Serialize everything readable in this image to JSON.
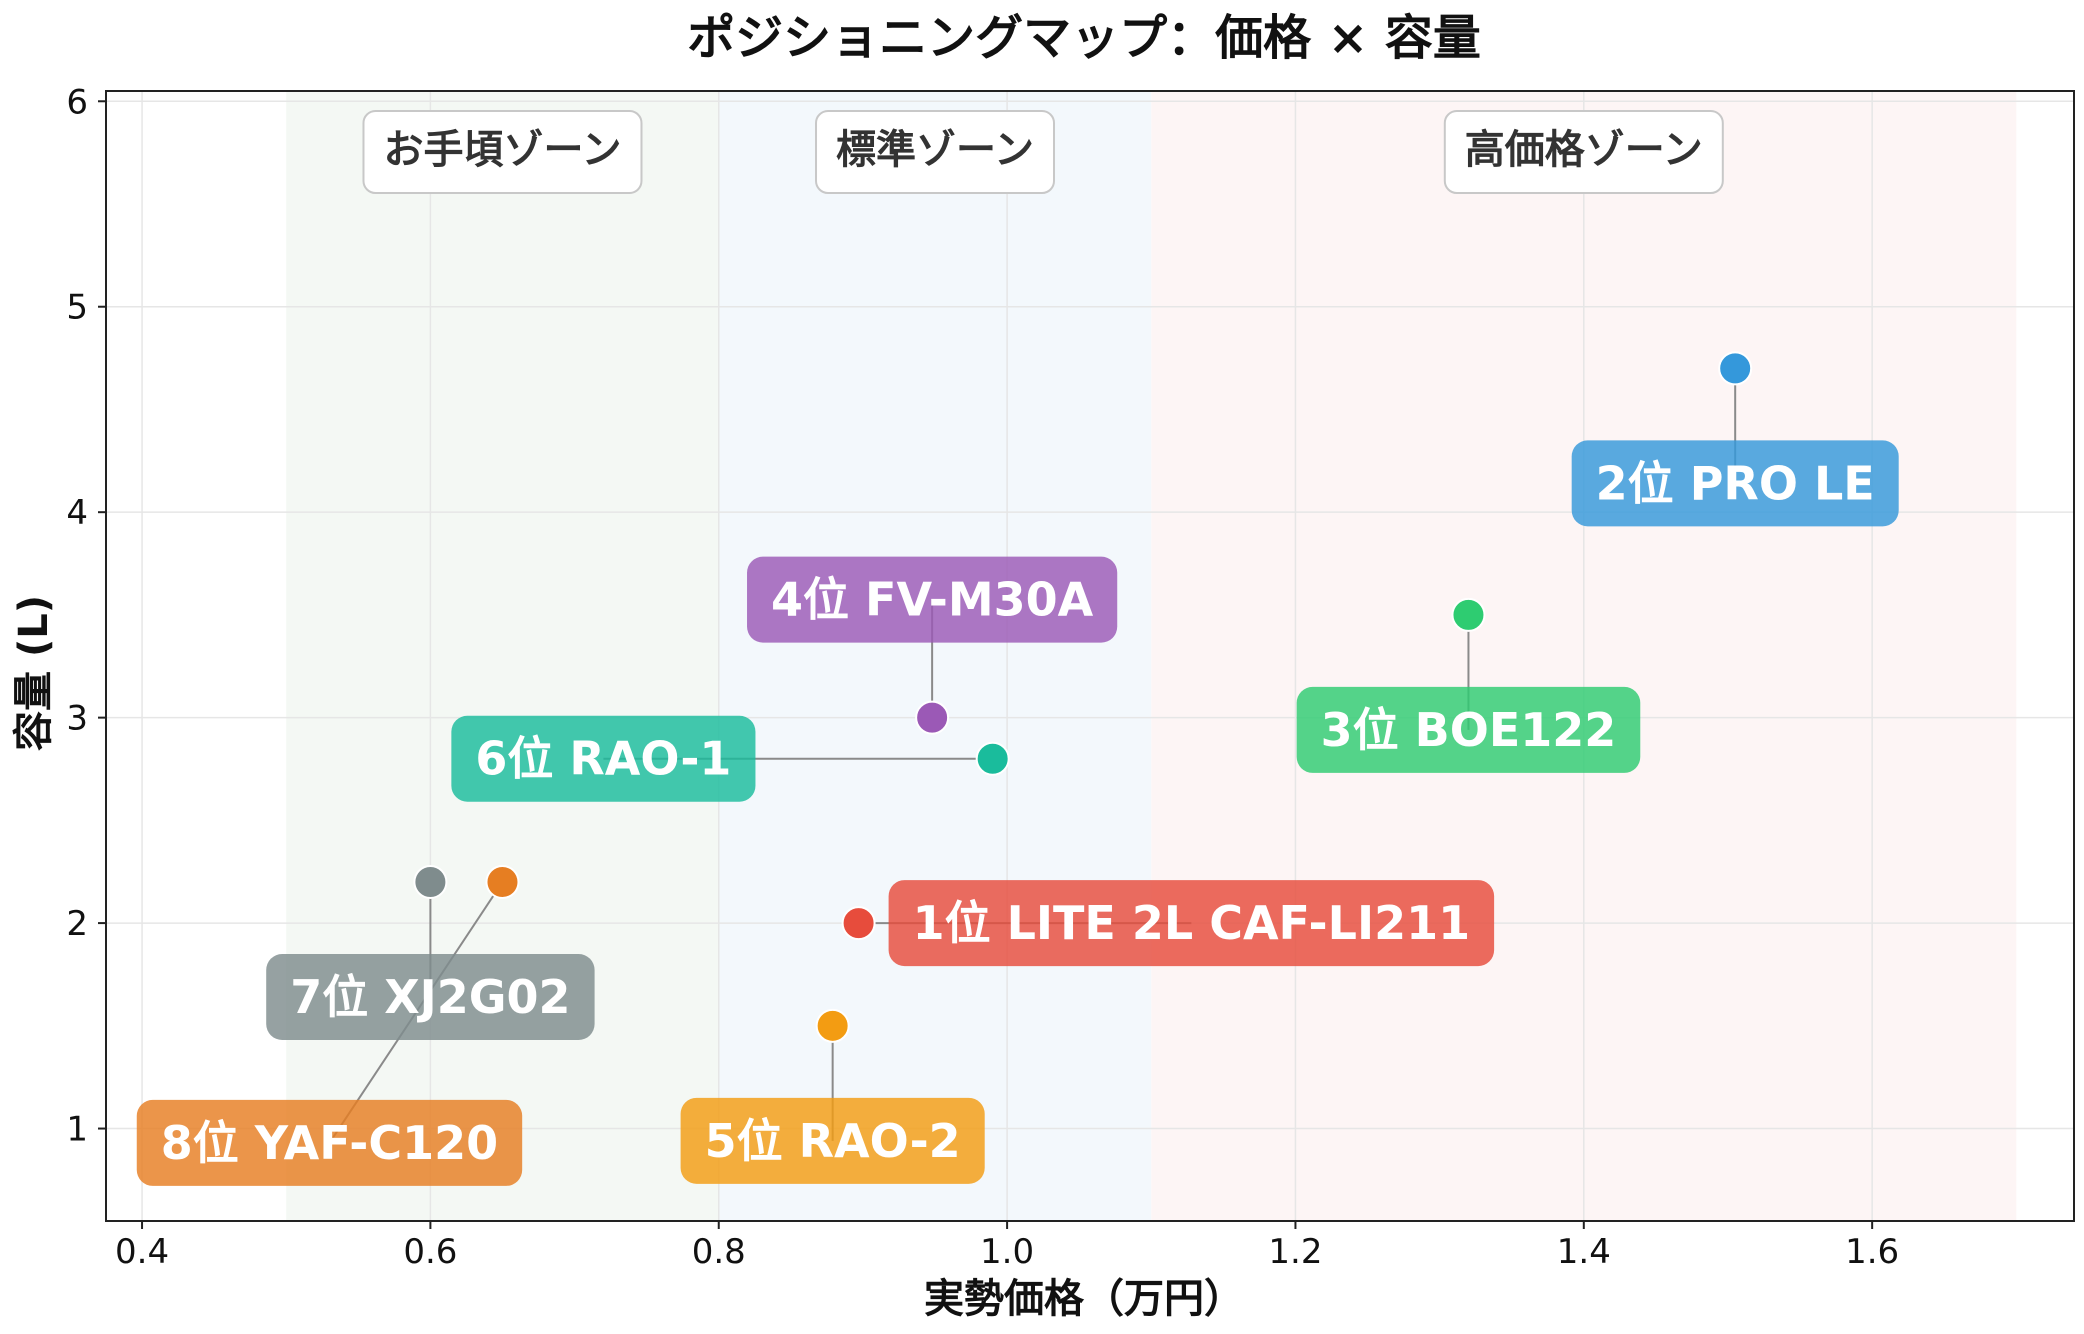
{
  "chart_data": {
    "type": "scatter",
    "title": "ポジショニングマップ：価格 × 容量",
    "xlabel": "実勢価格（万円）",
    "ylabel": "容量 (L)",
    "xlim": [
      0.375,
      1.74
    ],
    "ylim": [
      0.55,
      6.05
    ],
    "xticks": [
      "0.4",
      "0.6",
      "0.8",
      "1.0",
      "1.2",
      "1.4",
      "1.6"
    ],
    "yticks": [
      "1",
      "2",
      "3",
      "4",
      "5",
      "6"
    ],
    "grid": true,
    "zones": [
      {
        "label": "お手頃ゾーン",
        "x_from": 0.5,
        "x_to": 0.8,
        "color": "#f4f8f4"
      },
      {
        "label": "標準ゾーン",
        "x_from": 0.8,
        "x_to": 1.1,
        "color": "#f3f8fc"
      },
      {
        "label": "高価格ゾーン",
        "x_from": 1.1,
        "x_to": 1.7,
        "color": "#fdf5f5"
      }
    ],
    "points": [
      {
        "label": "1位 LITE 2L CAF-LI211",
        "x": 0.897,
        "y": 2.0,
        "color": "#e74c3c",
        "label_pos": "right"
      },
      {
        "label": "2位 PRO LE",
        "x": 1.505,
        "y": 4.7,
        "color": "#3498db",
        "label_pos": "below"
      },
      {
        "label": "3位 BOE122",
        "x": 1.32,
        "y": 3.5,
        "color": "#2ecc71",
        "label_pos": "below"
      },
      {
        "label": "4位 FV-M30A",
        "x": 0.948,
        "y": 3.0,
        "color": "#9b59b6",
        "label_pos": "above"
      },
      {
        "label": "5位 RAO-2",
        "x": 0.879,
        "y": 1.5,
        "color": "#f39c12",
        "label_pos": "below"
      },
      {
        "label": "6位 RAO-1",
        "x": 0.99,
        "y": 2.8,
        "color": "#1abc9c",
        "label_pos": "left-far"
      },
      {
        "label": "7位 XJ2G02",
        "x": 0.6,
        "y": 2.2,
        "color": "#7f8c8d",
        "label_pos": "below"
      },
      {
        "label": "8位 YAF-C120",
        "x": 0.65,
        "y": 2.2,
        "color": "#e67e22",
        "label_pos": "below-left"
      }
    ]
  }
}
